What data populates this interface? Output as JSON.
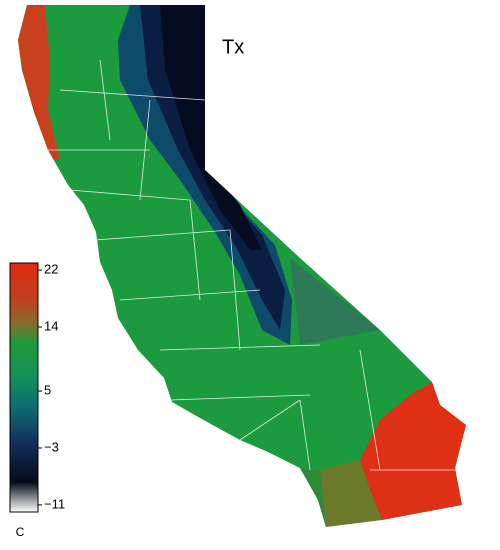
{
  "map": {
    "title": "Tx",
    "colorbar": {
      "unit": "C",
      "clim": [
        -12,
        23
      ],
      "ticks": [
        22,
        14,
        5,
        {
          "value": -3,
          "label": "−3"
        },
        {
          "value": -11,
          "label": "−11"
        }
      ]
    }
  }
}
